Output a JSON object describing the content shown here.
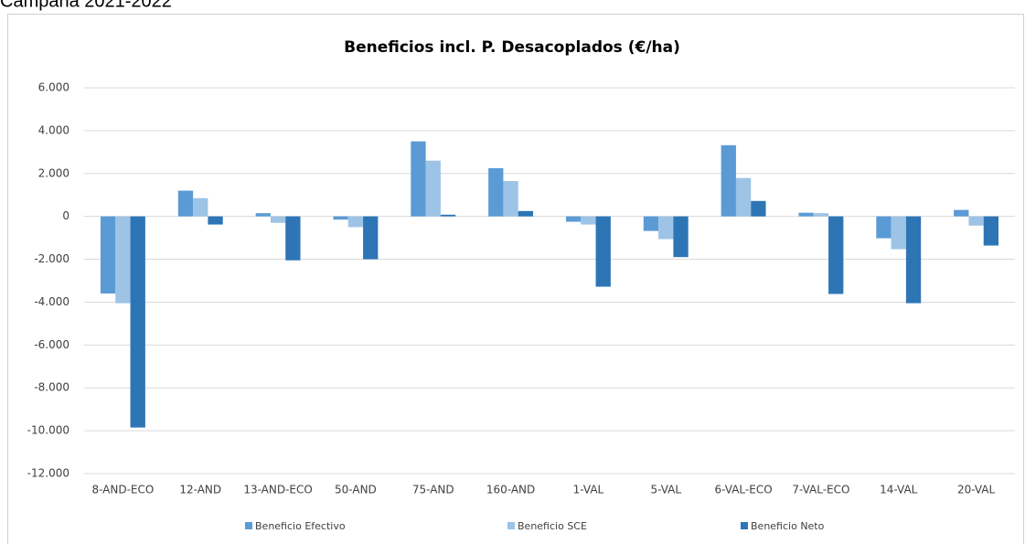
{
  "chart_data": {
    "type": "bar",
    "caption": "Campaña 2021-2022",
    "title": "Beneficios incl. P. Desacoplados (€/ha)",
    "categories": [
      "8-AND-ECO",
      "12-AND",
      "13-AND-ECO",
      "50-AND",
      "75-AND",
      "160-AND",
      "1-VAL",
      "5-VAL",
      "6-VAL-ECO",
      "7-VAL-ECO",
      "14-VAL",
      "20-VAL"
    ],
    "series": [
      {
        "name": "Beneficio Efectivo",
        "color": "#5b9bd5",
        "values": [
          -3600,
          1200,
          150,
          -150,
          3500,
          2250,
          -250,
          -680,
          3320,
          170,
          -1020,
          300
        ]
      },
      {
        "name": "Beneficio SCE",
        "color": "#9dc3e6",
        "values": [
          -4050,
          850,
          -300,
          -500,
          2600,
          1650,
          -380,
          -1060,
          1790,
          150,
          -1530,
          -430
        ]
      },
      {
        "name": "Beneficio Neto",
        "color": "#2e75b6",
        "values": [
          -9850,
          -380,
          -2050,
          -2000,
          80,
          250,
          -3280,
          -1900,
          720,
          -3620,
          -4050,
          -1360
        ]
      }
    ],
    "ylim": [
      -12000,
      6000
    ],
    "yticks": [
      {
        "value": -12000,
        "label": "-12.000"
      },
      {
        "value": -10000,
        "label": "-10.000"
      },
      {
        "value": -8000,
        "label": "-8.000"
      },
      {
        "value": -6000,
        "label": "-6.000"
      },
      {
        "value": -4000,
        "label": "-4.000"
      },
      {
        "value": -2000,
        "label": "-2.000"
      },
      0,
      {
        "value": 2000,
        "label": "2.000"
      },
      {
        "value": 4000,
        "label": "4.000"
      },
      {
        "value": 6000,
        "label": "6.000"
      }
    ],
    "grid": true,
    "legend": "bottom"
  }
}
